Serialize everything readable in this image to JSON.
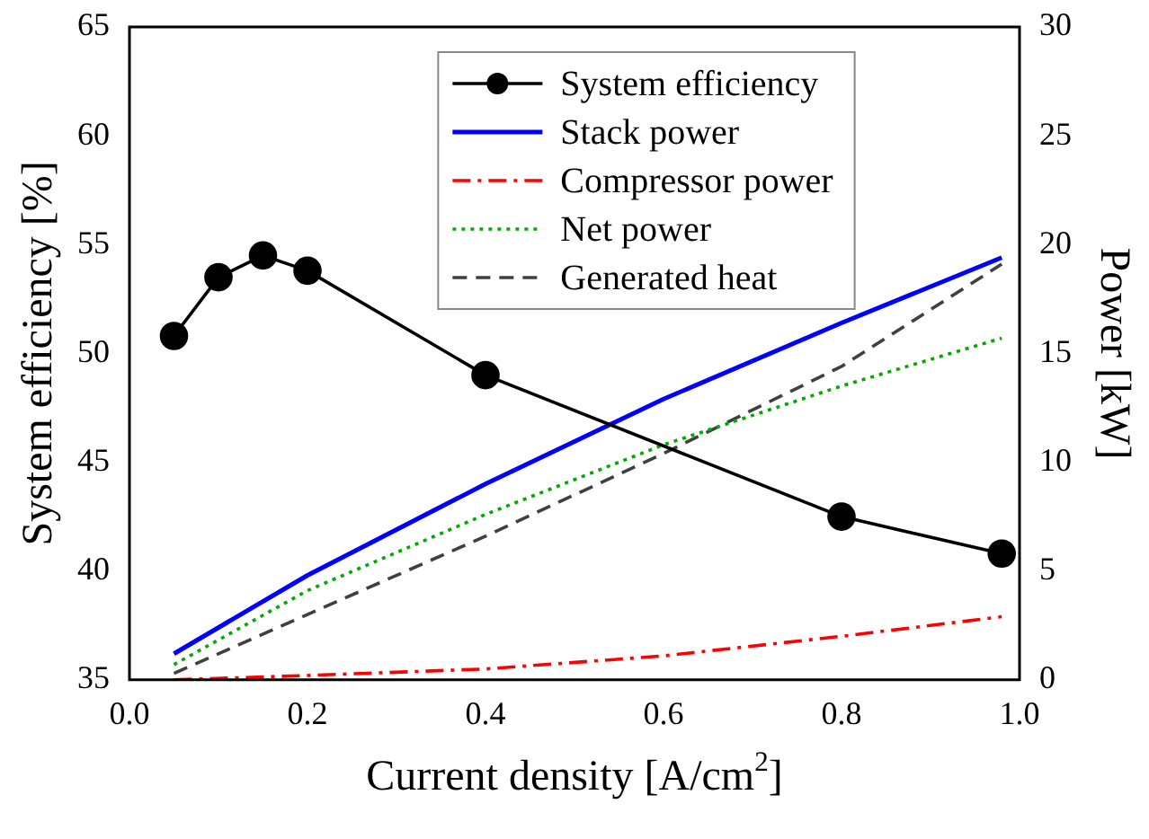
{
  "chart_data": {
    "type": "line",
    "xlabel": "Current density [A/cm$^{2}$]",
    "ylabel": "System efficiency [%]",
    "y2label": "Power [kW]",
    "xlim": [
      0,
      1
    ],
    "xticks": [
      {
        "value": 0,
        "label": "0.0"
      },
      {
        "value": 0.2,
        "label": "0.2"
      },
      {
        "value": 0.4,
        "label": "0.4"
      },
      {
        "value": 0.6,
        "label": "0.6"
      },
      {
        "value": 0.8,
        "label": "0.8"
      },
      {
        "value": 1,
        "label": "1.0"
      }
    ],
    "ylim": [
      35,
      65
    ],
    "yticks": [
      35,
      40,
      45,
      50,
      55,
      60,
      65
    ],
    "y2lim": [
      0,
      30
    ],
    "y2ticks": [
      0,
      5,
      10,
      15,
      20,
      25,
      30
    ],
    "grid": false,
    "legend": "top",
    "series": [
      {
        "name": "System efficiency",
        "color": "#000000",
        "marker": "circle",
        "line_style": "solid",
        "x": [
          0.05,
          0.1,
          0.15,
          0.2,
          0.4,
          0.8,
          0.98
        ],
        "values": [
          50.8,
          53.5,
          54.5,
          53.8,
          49.0,
          42.5,
          40.8
        ]
      },
      {
        "name": "Stack power",
        "color": "#0000ff",
        "marker": "none",
        "line_style": "solid",
        "axis": "y2",
        "x": [
          0.05,
          0.2,
          0.4,
          0.6,
          0.8,
          0.98
        ],
        "values": [
          1.2,
          4.8,
          9.0,
          12.9,
          16.4,
          19.4
        ]
      },
      {
        "name": "Compressor power",
        "color": "#ff0000",
        "marker": "none",
        "line_style": "dashdot",
        "axis": "y2",
        "x": [
          0.05,
          0.2,
          0.4,
          0.6,
          0.8,
          0.98
        ],
        "values": [
          0.0,
          0.2,
          0.5,
          1.1,
          2.0,
          2.9
        ]
      },
      {
        "name": "Net power",
        "color": "#00aa00",
        "marker": "none",
        "line_style": "dotted",
        "axis": "y2",
        "x": [
          0.05,
          0.2,
          0.4,
          0.6,
          0.8,
          0.98
        ],
        "values": [
          0.7,
          4.1,
          7.6,
          10.8,
          13.5,
          15.7
        ]
      },
      {
        "name": "Generated heat",
        "color": "#404040",
        "marker": "none",
        "line_style": "dashed",
        "axis": "y2",
        "x": [
          0.05,
          0.2,
          0.4,
          0.6,
          0.8,
          0.98
        ],
        "values": [
          0.3,
          3.0,
          6.6,
          10.4,
          14.4,
          19.1
        ]
      }
    ]
  }
}
